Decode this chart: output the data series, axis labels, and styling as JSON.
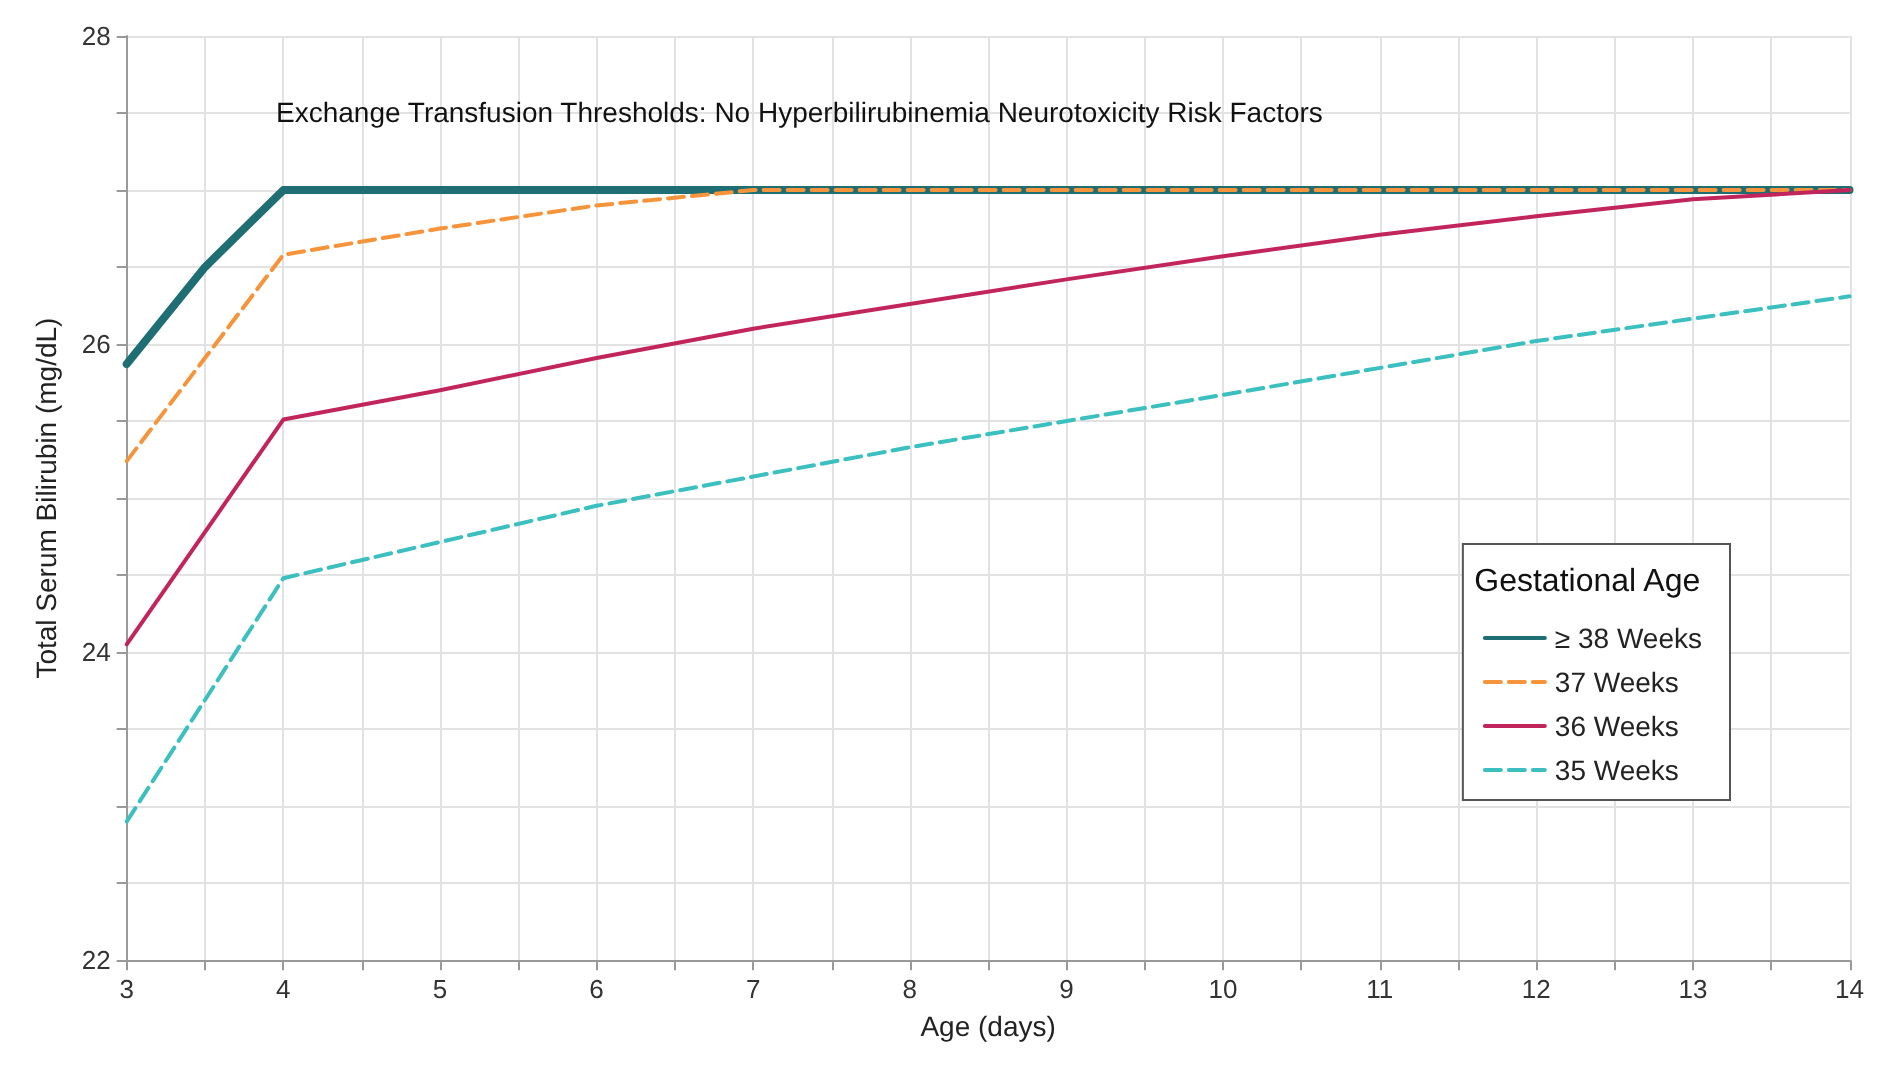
{
  "chart_data": {
    "type": "line",
    "title": "Exchange Transfusion Thresholds: No Hyperbilirubinemia Neurotoxicity Risk Factors",
    "xlabel": "Age (days)",
    "ylabel": "Total Serum Bilirubin (mg/dL)",
    "legend_title": "Gestational Age",
    "legend": "bottom right",
    "grid": true,
    "marker": "none",
    "xlim": [
      3,
      14
    ],
    "xticks": [
      3,
      {
        "value": 3.5,
        "label": null
      },
      4,
      {
        "value": 4.5,
        "label": null
      },
      5,
      {
        "value": 5.5,
        "label": null
      },
      6,
      {
        "value": 6.5,
        "label": null
      },
      7,
      {
        "value": 7.5,
        "label": null
      },
      8,
      {
        "value": 8.5,
        "label": null
      },
      9,
      {
        "value": 9.5,
        "label": null
      },
      10,
      {
        "value": 10.5,
        "label": null
      },
      11,
      {
        "value": 11.5,
        "label": null
      },
      12,
      {
        "value": 12.5,
        "label": null
      },
      13,
      {
        "value": 13.5,
        "label": null
      },
      14
    ],
    "ylim": [
      22,
      28
    ],
    "yticks": [
      22,
      {
        "value": 22.5,
        "label": null
      },
      {
        "value": 23,
        "label": null
      },
      {
        "value": 23.5,
        "label": null
      },
      24,
      {
        "value": 24.5,
        "label": null
      },
      {
        "value": 25,
        "label": null
      },
      {
        "value": 25.5,
        "label": null
      },
      26,
      {
        "value": 26.5,
        "label": null
      },
      {
        "value": 27,
        "label": null
      },
      {
        "value": 27.5,
        "label": null
      },
      28
    ],
    "series": [
      {
        "name": "≥ 38 Weeks",
        "color": "#1f6e73",
        "line_style": "solid",
        "x": [
          3,
          3.5,
          4,
          14
        ],
        "values": [
          25.87,
          26.5,
          27,
          27
        ]
      },
      {
        "name": "37 Weeks",
        "color": "#f5943a",
        "line_style": "dashed",
        "x": [
          3,
          4,
          5,
          6,
          7,
          14
        ],
        "values": [
          25.24,
          26.58,
          26.75,
          26.9,
          27,
          27
        ]
      },
      {
        "name": "36 Weeks",
        "color": "#c2255c",
        "line_style": "solid",
        "x": [
          3,
          4,
          5,
          6,
          7,
          8,
          9,
          10,
          11,
          12,
          13,
          14
        ],
        "values": [
          24.05,
          25.51,
          25.7,
          25.91,
          26.1,
          26.26,
          26.42,
          26.57,
          26.71,
          26.83,
          26.94,
          27
        ]
      },
      {
        "name": "35 Weeks",
        "color": "#3bbfbf",
        "line_style": "dashed",
        "x": [
          3,
          4,
          6,
          8,
          10,
          12,
          14
        ],
        "values": [
          22.9,
          24.48,
          24.95,
          25.33,
          25.67,
          26.02,
          26.31
        ]
      }
    ]
  }
}
